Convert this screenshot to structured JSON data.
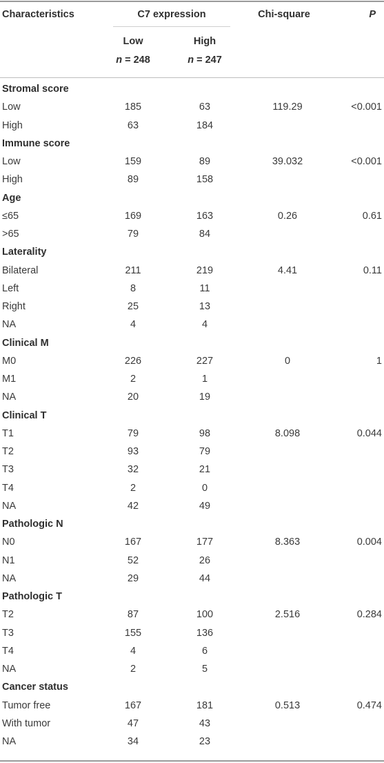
{
  "header": {
    "characteristics": "Characteristics",
    "c7_expression": "C7 expression",
    "chi_square": "Chi-square",
    "p": "P",
    "low_label": "Low",
    "low_n": "n = 248",
    "high_label": "High",
    "high_n": "n = 247"
  },
  "rows": [
    {
      "type": "group",
      "label": "Stromal score"
    },
    {
      "type": "data",
      "label": "Low",
      "low": "185",
      "high": "63",
      "chi": "119.29",
      "p": "<0.001"
    },
    {
      "type": "data",
      "label": "High",
      "low": "63",
      "high": "184",
      "chi": "",
      "p": ""
    },
    {
      "type": "group",
      "label": "Immune score"
    },
    {
      "type": "data",
      "label": "Low",
      "low": "159",
      "high": "89",
      "chi": "39.032",
      "p": "<0.001"
    },
    {
      "type": "data",
      "label": "High",
      "low": "89",
      "high": "158",
      "chi": "",
      "p": ""
    },
    {
      "type": "group",
      "label": "Age"
    },
    {
      "type": "data",
      "label": "≤65",
      "low": "169",
      "high": "163",
      "chi": "0.26",
      "p": "0.61"
    },
    {
      "type": "data",
      "label": ">65",
      "low": "79",
      "high": "84",
      "chi": "",
      "p": ""
    },
    {
      "type": "group",
      "label": "Laterality"
    },
    {
      "type": "data",
      "label": "Bilateral",
      "low": "211",
      "high": "219",
      "chi": "4.41",
      "p": "0.11"
    },
    {
      "type": "data",
      "label": "Left",
      "low": "8",
      "high": "11",
      "chi": "",
      "p": ""
    },
    {
      "type": "data",
      "label": "Right",
      "low": "25",
      "high": "13",
      "chi": "",
      "p": ""
    },
    {
      "type": "data",
      "label": "NA",
      "low": "4",
      "high": "4",
      "chi": "",
      "p": ""
    },
    {
      "type": "group",
      "label": "Clinical M"
    },
    {
      "type": "data",
      "label": "M0",
      "low": "226",
      "high": "227",
      "chi": "0",
      "p": "1"
    },
    {
      "type": "data",
      "label": "M1",
      "low": "2",
      "high": "1",
      "chi": "",
      "p": ""
    },
    {
      "type": "data",
      "label": "NA",
      "low": "20",
      "high": "19",
      "chi": "",
      "p": ""
    },
    {
      "type": "group",
      "label": "Clinical T"
    },
    {
      "type": "data",
      "label": "T1",
      "low": "79",
      "high": "98",
      "chi": "8.098",
      "p": "0.044"
    },
    {
      "type": "data",
      "label": "T2",
      "low": "93",
      "high": "79",
      "chi": "",
      "p": ""
    },
    {
      "type": "data",
      "label": "T3",
      "low": "32",
      "high": "21",
      "chi": "",
      "p": ""
    },
    {
      "type": "data",
      "label": "T4",
      "low": "2",
      "high": "0",
      "chi": "",
      "p": ""
    },
    {
      "type": "data",
      "label": "NA",
      "low": "42",
      "high": "49",
      "chi": "",
      "p": ""
    },
    {
      "type": "group",
      "label": "Pathologic N"
    },
    {
      "type": "data",
      "label": "N0",
      "low": "167",
      "high": "177",
      "chi": "8.363",
      "p": "0.004"
    },
    {
      "type": "data",
      "label": "N1",
      "low": "52",
      "high": "26",
      "chi": "",
      "p": ""
    },
    {
      "type": "data",
      "label": "NA",
      "low": "29",
      "high": "44",
      "chi": "",
      "p": ""
    },
    {
      "type": "group",
      "label": "Pathologic T"
    },
    {
      "type": "data",
      "label": "T2",
      "low": "87",
      "high": "100",
      "chi": "2.516",
      "p": "0.284"
    },
    {
      "type": "data",
      "label": "T3",
      "low": "155",
      "high": "136",
      "chi": "",
      "p": ""
    },
    {
      "type": "data",
      "label": "T4",
      "low": "4",
      "high": "6",
      "chi": "",
      "p": ""
    },
    {
      "type": "data",
      "label": "NA",
      "low": "2",
      "high": "5",
      "chi": "",
      "p": ""
    },
    {
      "type": "group",
      "label": "Cancer status"
    },
    {
      "type": "data",
      "label": "Tumor free",
      "low": "167",
      "high": "181",
      "chi": "0.513",
      "p": "0.474"
    },
    {
      "type": "data",
      "label": "With tumor",
      "low": "47",
      "high": "43",
      "chi": "",
      "p": ""
    },
    {
      "type": "data",
      "label": "NA",
      "low": "34",
      "high": "23",
      "chi": "",
      "p": ""
    }
  ]
}
